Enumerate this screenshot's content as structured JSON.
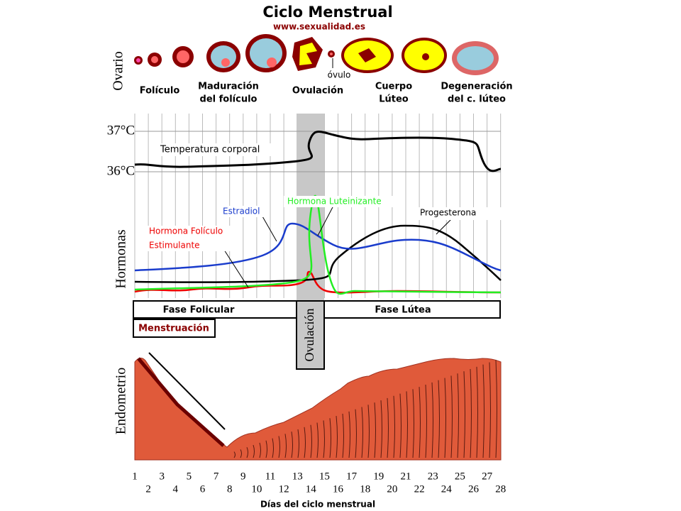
{
  "title": "Ciclo Menstrual",
  "url": "www.sexualidad.es",
  "ovary": {
    "label": "Ovario",
    "ovum": "óvulo",
    "stages": [
      [
        "Folículo"
      ],
      [
        "Maduración",
        "del folículo"
      ],
      [
        "Ovulación"
      ],
      [
        "Cuerpo",
        "Lúteo"
      ],
      [
        "Degeneración",
        "del c. lúteo"
      ]
    ]
  },
  "temperature": {
    "ticks": [
      "37°C",
      "36°C"
    ],
    "label": "Temperatura corporal"
  },
  "hormones": {
    "label": "Hormonas",
    "estradiol": "Estradiol",
    "lh": "Hormona Luteinizante",
    "progesterone": "Progesterona",
    "fsh": [
      "Hormona Folículo",
      "Estimulante"
    ]
  },
  "phases": {
    "follicular": "Fase Folicular",
    "ovulation": "Ovulación",
    "luteal": "Fase Lútea",
    "menstruation": "Menstruación"
  },
  "endometrium": {
    "label": "Endometrio"
  },
  "days": [
    1,
    2,
    3,
    4,
    5,
    6,
    7,
    8,
    9,
    10,
    11,
    12,
    13,
    14,
    15,
    16,
    17,
    18,
    19,
    20,
    21,
    22,
    23,
    24,
    25,
    26,
    27,
    28
  ],
  "x_label": "Días del ciclo menstrual"
}
